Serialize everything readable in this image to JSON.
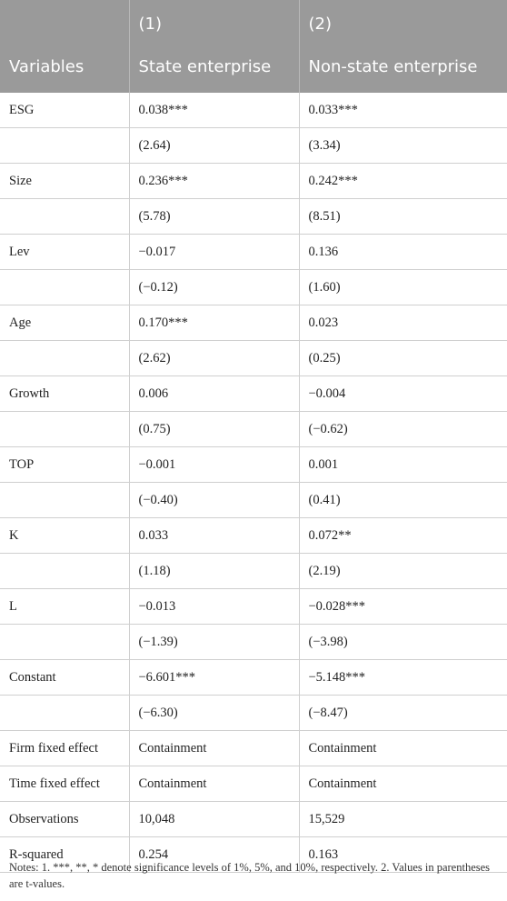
{
  "header": {
    "row1": [
      "",
      "(1)",
      "(2)"
    ],
    "row2": [
      "Variables",
      "State enterprise",
      "Non-state enterprise"
    ]
  },
  "rows": [
    [
      "ESG",
      "0.038***",
      "0.033***"
    ],
    [
      "",
      "(2.64)",
      "(3.34)"
    ],
    [
      "Size",
      "0.236***",
      "0.242***"
    ],
    [
      "",
      "(5.78)",
      "(8.51)"
    ],
    [
      "Lev",
      "−0.017",
      "0.136"
    ],
    [
      "",
      "(−0.12)",
      "(1.60)"
    ],
    [
      "Age",
      "0.170***",
      "0.023"
    ],
    [
      "",
      "(2.62)",
      "(0.25)"
    ],
    [
      "Growth",
      "0.006",
      "−0.004"
    ],
    [
      "",
      "(0.75)",
      "(−0.62)"
    ],
    [
      "TOP",
      "−0.001",
      "0.001"
    ],
    [
      "",
      "(−0.40)",
      "(0.41)"
    ],
    [
      "K",
      "0.033",
      "0.072**"
    ],
    [
      "",
      "(1.18)",
      "(2.19)"
    ],
    [
      "L",
      "−0.013",
      "−0.028***"
    ],
    [
      "",
      "(−1.39)",
      "(−3.98)"
    ],
    [
      "Constant",
      "−6.601***",
      "−5.148***"
    ],
    [
      "",
      "(−6.30)",
      "(−8.47)"
    ],
    [
      "Firm fixed effect",
      "Containment",
      "Containment"
    ],
    [
      "Time fixed effect",
      "Containment",
      "Containment"
    ],
    [
      "Observations",
      "10,048",
      "15,529"
    ],
    [
      "R-squared",
      "0.254",
      "0.163"
    ]
  ],
  "notes": "Notes: 1. ***, **, * denote significance levels of 1%, 5%, and 10%, respectively. 2. Values in parentheses are t-values."
}
